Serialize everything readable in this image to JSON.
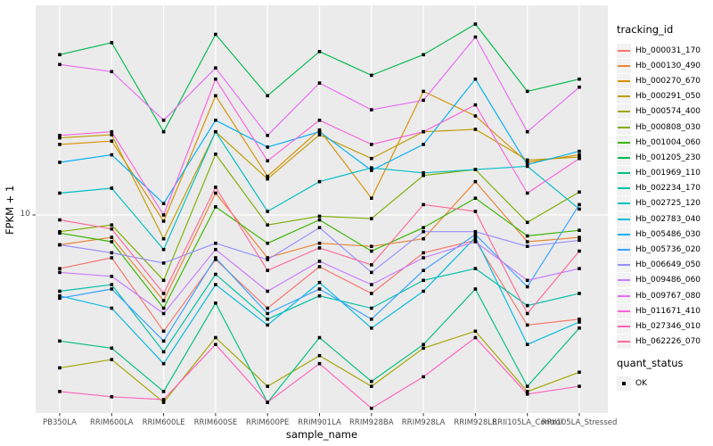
{
  "chart_data": {
    "type": "line",
    "title": "",
    "xlabel": "sample_name",
    "ylabel": "FPKM + 1",
    "y_scale": "log10",
    "y_tick_values": [
      10
    ],
    "y_tick_labels": [
      "10"
    ],
    "ylim_approx": [
      1.9,
      57
    ],
    "grid": "major-only",
    "legend_position": "right",
    "point_marker": "filled-black-square",
    "categories": [
      "PB350LA",
      "RRIM600LA",
      "RRIM600LE",
      "RRIM600SE",
      "RRIM600PE",
      "RRIM901LA",
      "RRIM928BA",
      "RRIM928LA",
      "RRIM928LE",
      "RRII105LA_Control",
      "RRII105LA_Stressed"
    ],
    "series": [
      {
        "name": "Hb_000031_170",
        "color": "#F8766D",
        "values": [
          6.4,
          7.0,
          3.8,
          6.9,
          4.6,
          6.5,
          5.2,
          7.3,
          8.1,
          4.0,
          4.2
        ]
      },
      {
        "name": "Hb_000130_490",
        "color": "#EA8331",
        "values": [
          7.8,
          8.3,
          4.9,
          12.0,
          7.0,
          7.9,
          7.7,
          8.2,
          13.2,
          8.0,
          8.3
        ]
      },
      {
        "name": "Hb_000270_670",
        "color": "#D89000",
        "values": [
          18.0,
          18.5,
          9.5,
          27.0,
          13.8,
          20.3,
          11.5,
          28.0,
          22.8,
          15.5,
          16.5
        ]
      },
      {
        "name": "Hb_000291_050",
        "color": "#C09B00",
        "values": [
          19.0,
          19.5,
          8.2,
          20.0,
          13.5,
          19.5,
          16.0,
          20.0,
          20.4,
          15.8,
          16.2
        ]
      },
      {
        "name": "Hb_000574_400",
        "color": "#A3A500",
        "values": [
          2.8,
          3.0,
          2.1,
          3.6,
          2.4,
          3.1,
          2.4,
          3.3,
          3.8,
          2.3,
          2.7
        ]
      },
      {
        "name": "Hb_000808_030",
        "color": "#7CAE00",
        "values": [
          8.7,
          9.2,
          5.8,
          16.6,
          9.2,
          9.9,
          9.7,
          13.9,
          14.6,
          9.4,
          12.1
        ]
      },
      {
        "name": "Hb_001004_060",
        "color": "#39B600",
        "values": [
          8.6,
          8.0,
          4.6,
          10.7,
          7.9,
          9.6,
          7.4,
          9.0,
          11.5,
          8.4,
          8.8
        ]
      },
      {
        "name": "Hb_001205_230",
        "color": "#00BB4E",
        "values": [
          38.0,
          42.0,
          20.0,
          45.0,
          27.0,
          39.0,
          32.0,
          38.0,
          49.0,
          28.0,
          31.0
        ]
      },
      {
        "name": "Hb_001969_110",
        "color": "#00BF7D",
        "values": [
          3.5,
          3.3,
          2.3,
          4.8,
          2.1,
          3.6,
          2.5,
          3.4,
          5.4,
          2.4,
          3.9
        ]
      },
      {
        "name": "Hb_002234_170",
        "color": "#00C1A7",
        "values": [
          5.3,
          5.6,
          3.2,
          6.1,
          4.2,
          5.1,
          4.6,
          5.8,
          6.4,
          4.7,
          5.2
        ]
      },
      {
        "name": "Hb_002725_120",
        "color": "#00BFC4",
        "values": [
          12.0,
          12.5,
          7.5,
          20.0,
          10.3,
          13.2,
          14.8,
          14.2,
          14.6,
          15.0,
          10.5
        ]
      },
      {
        "name": "Hb_002783_040",
        "color": "#00BAE0",
        "values": [
          5.1,
          4.6,
          2.9,
          5.6,
          4.0,
          5.7,
          3.9,
          5.3,
          8.3,
          3.4,
          4.1
        ]
      },
      {
        "name": "Hb_005486_030",
        "color": "#00B0F6",
        "values": [
          15.5,
          16.5,
          11.0,
          22.0,
          17.6,
          20.0,
          14.5,
          18.0,
          31.0,
          15.2,
          17.0
        ]
      },
      {
        "name": "Hb_005736_020",
        "color": "#35A2FF",
        "values": [
          5.0,
          5.4,
          3.5,
          7.0,
          4.4,
          5.4,
          4.2,
          6.3,
          8.5,
          5.5,
          10.9
        ]
      },
      {
        "name": "Hb_006649_050",
        "color": "#9590FF",
        "values": [
          7.8,
          7.3,
          6.7,
          7.9,
          6.9,
          9.0,
          6.2,
          8.7,
          8.7,
          7.7,
          8.1
        ]
      },
      {
        "name": "Hb_009486_060",
        "color": "#C77CFF",
        "values": [
          6.2,
          6.0,
          4.4,
          7.5,
          5.3,
          6.8,
          5.6,
          7.0,
          8.0,
          5.8,
          6.4
        ]
      },
      {
        "name": "Hb_009767_080",
        "color": "#E76BF3",
        "values": [
          35.0,
          33.0,
          22.0,
          34.0,
          19.4,
          30.0,
          24.0,
          26.0,
          44.0,
          20.0,
          29.0
        ]
      },
      {
        "name": "Hb_011671_410",
        "color": "#FA62DB",
        "values": [
          19.4,
          20.0,
          10.0,
          31.0,
          15.7,
          22.0,
          18.0,
          20.0,
          25.0,
          12.0,
          16.0
        ]
      },
      {
        "name": "Hb_027346_010",
        "color": "#FF62BC",
        "values": [
          2.3,
          2.2,
          2.15,
          3.4,
          2.1,
          2.9,
          2.0,
          2.6,
          3.6,
          2.25,
          2.4
        ]
      },
      {
        "name": "Hb_062226_070",
        "color": "#FF6A98",
        "values": [
          9.6,
          8.9,
          5.2,
          12.6,
          6.3,
          7.6,
          6.6,
          10.9,
          10.3,
          4.4,
          7.4
        ]
      }
    ],
    "legend": {
      "color_title": "tracking_id",
      "shape_title": "quant_status",
      "shape_items": [
        {
          "label": "OK",
          "marker": "filled-black-square"
        }
      ]
    },
    "style": {
      "panel_bg": "#EBEBEB",
      "grid_color": "#FFFFFF",
      "point_color": "#000000",
      "axis_text_color": "#4D4D4D",
      "axis_title_color": "#000000",
      "legend_key_bg": "#F2F2F2"
    }
  }
}
